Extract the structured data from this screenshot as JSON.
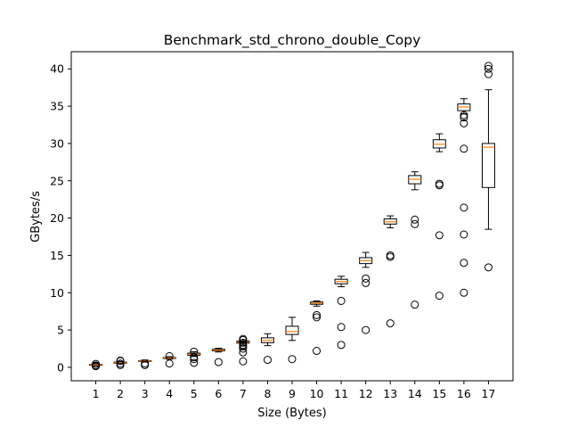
{
  "chart_data": {
    "type": "box",
    "title": "Benchmark_std_chrono_double_Copy",
    "xlabel": "Size (Bytes)",
    "ylabel": "GBytes/s",
    "ylim": [
      -1.8,
      42.3
    ],
    "yticks": [
      0,
      5,
      10,
      15,
      20,
      25,
      30,
      35,
      40
    ],
    "grid": false,
    "categories": [
      "1",
      "2",
      "3",
      "4",
      "5",
      "6",
      "7",
      "8",
      "9",
      "10",
      "11",
      "12",
      "13",
      "14",
      "15",
      "16",
      "17"
    ],
    "boxes": [
      {
        "whislo": 0.2,
        "q1": 0.3,
        "med": 0.35,
        "q3": 0.4,
        "whishi": 0.5,
        "fliers": [
          0.15,
          0.25,
          0.45
        ]
      },
      {
        "whislo": 0.45,
        "q1": 0.55,
        "med": 0.62,
        "q3": 0.7,
        "whishi": 0.8,
        "fliers": [
          0.3,
          0.5,
          0.85,
          0.9
        ]
      },
      {
        "whislo": 0.7,
        "q1": 0.78,
        "med": 0.84,
        "q3": 0.9,
        "whishi": 0.98,
        "fliers": [
          0.3,
          0.5
        ]
      },
      {
        "whislo": 1.1,
        "q1": 1.18,
        "med": 1.25,
        "q3": 1.32,
        "whishi": 1.42,
        "fliers": [
          0.5,
          1.5
        ]
      },
      {
        "whislo": 1.45,
        "q1": 1.62,
        "med": 1.75,
        "q3": 1.9,
        "whishi": 2.08,
        "fliers": [
          0.6,
          1.1,
          1.35,
          2.1
        ]
      },
      {
        "whislo": 2.05,
        "q1": 2.2,
        "med": 2.3,
        "q3": 2.42,
        "whishi": 2.55,
        "fliers": [
          0.7
        ]
      },
      {
        "whislo": 3.0,
        "q1": 3.25,
        "med": 3.4,
        "q3": 3.52,
        "whishi": 3.7,
        "fliers": [
          0.8,
          2.0,
          2.5,
          2.8,
          3.8,
          3.65,
          3.3,
          3.0
        ]
      },
      {
        "whislo": 2.9,
        "q1": 3.3,
        "med": 3.6,
        "q3": 3.95,
        "whishi": 4.5,
        "fliers": [
          1.0
        ]
      },
      {
        "whislo": 3.6,
        "q1": 4.4,
        "med": 4.8,
        "q3": 5.5,
        "whishi": 6.7,
        "fliers": [
          1.1
        ]
      },
      {
        "whislo": 8.2,
        "q1": 8.45,
        "med": 8.6,
        "q3": 8.75,
        "whishi": 8.9,
        "fliers": [
          2.2,
          6.7,
          7.0
        ]
      },
      {
        "whislo": 10.8,
        "q1": 11.2,
        "med": 11.5,
        "q3": 11.8,
        "whishi": 12.2,
        "fliers": [
          3.0,
          5.4,
          8.9
        ]
      },
      {
        "whislo": 13.4,
        "q1": 13.9,
        "med": 14.3,
        "q3": 14.7,
        "whishi": 15.4,
        "fliers": [
          5.0,
          11.3,
          11.9
        ]
      },
      {
        "whislo": 18.7,
        "q1": 19.2,
        "med": 19.5,
        "q3": 19.9,
        "whishi": 20.3,
        "fliers": [
          5.9,
          14.8,
          15.0
        ]
      },
      {
        "whislo": 23.8,
        "q1": 24.6,
        "med": 25.2,
        "q3": 25.7,
        "whishi": 26.2,
        "fliers": [
          8.4,
          19.2,
          19.8
        ]
      },
      {
        "whislo": 28.9,
        "q1": 29.4,
        "med": 29.9,
        "q3": 30.5,
        "whishi": 31.3,
        "fliers": [
          9.6,
          17.7,
          24.4,
          24.6
        ]
      },
      {
        "whislo": 34.0,
        "q1": 34.4,
        "med": 34.9,
        "q3": 35.3,
        "whishi": 36.0,
        "fliers": [
          10.0,
          14.0,
          17.8,
          21.4,
          29.3,
          32.7,
          33.5,
          33.8
        ]
      },
      {
        "whislo": 18.5,
        "q1": 24.1,
        "med": 29.5,
        "q3": 30.0,
        "whishi": 37.2,
        "fliers": [
          13.4,
          39.3,
          40.0,
          40.4
        ]
      }
    ],
    "colors": {
      "box": "#000000",
      "median": "#ff7f0e",
      "flier": "#000000",
      "background": "#ffffff"
    }
  }
}
